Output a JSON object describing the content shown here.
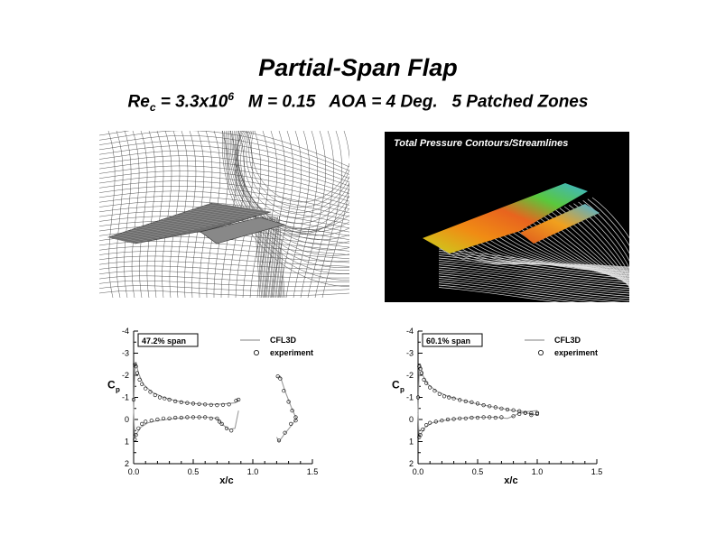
{
  "title": "Partial-Span Flap",
  "subtitle": {
    "re_prefix": "Re",
    "re_sub": "c",
    "re_value": " = 3.3x10",
    "re_exp": "6",
    "rest": "   M = 0.15   AOA = 4 Deg.   5 Patched Zones"
  },
  "cfd_caption": "Total Pressure Contours/Streamlines",
  "colors": {
    "curve": "#9a9a9a",
    "marker": "#000000",
    "cfd_bg": "#000000"
  },
  "chart_data": [
    {
      "type": "line",
      "label_box": "47.2% span",
      "xlabel": "x/c",
      "ylabel": "C",
      "ylabel_sub": "p",
      "xlim": [
        0.0,
        1.5
      ],
      "ylim": [
        2,
        -4
      ],
      "xticks": [
        "0.0",
        "0.5",
        "1.0",
        "1.5"
      ],
      "yticks": [
        "-4",
        "-3",
        "-2",
        "-1",
        "0",
        "1",
        "2"
      ],
      "legend": [
        "CFL3D",
        "experiment"
      ],
      "series": [
        {
          "name": "CFL3D",
          "curves": [
            [
              [
                0.0,
                -0.4
              ],
              [
                0.005,
                -1.4
              ],
              [
                0.01,
                -2.2
              ],
              [
                0.02,
                -2.6
              ],
              [
                0.04,
                -2.1
              ],
              [
                0.08,
                -1.6
              ],
              [
                0.15,
                -1.25
              ],
              [
                0.25,
                -1.0
              ],
              [
                0.35,
                -0.85
              ],
              [
                0.45,
                -0.75
              ],
              [
                0.55,
                -0.7
              ],
              [
                0.65,
                -0.68
              ],
              [
                0.75,
                -0.7
              ],
              [
                0.85,
                -0.75
              ],
              [
                0.88,
                -0.9
              ]
            ],
            [
              [
                0.0,
                -0.4
              ],
              [
                0.005,
                0.3
              ],
              [
                0.01,
                0.8
              ],
              [
                0.03,
                0.6
              ],
              [
                0.06,
                0.35
              ],
              [
                0.12,
                0.15
              ],
              [
                0.2,
                0.05
              ],
              [
                0.35,
                -0.05
              ],
              [
                0.5,
                -0.1
              ],
              [
                0.62,
                -0.1
              ],
              [
                0.7,
                -0.05
              ],
              [
                0.75,
                0.25
              ],
              [
                0.8,
                0.45
              ],
              [
                0.85,
                0.4
              ],
              [
                0.88,
                -0.4
              ]
            ],
            [
              [
                1.2,
                -1.9
              ],
              [
                1.23,
                -1.95
              ],
              [
                1.27,
                -1.3
              ],
              [
                1.32,
                -0.6
              ],
              [
                1.36,
                -0.1
              ],
              [
                1.37,
                -0.05
              ],
              [
                1.32,
                0.3
              ],
              [
                1.26,
                0.7
              ],
              [
                1.22,
                1.0
              ],
              [
                1.2,
                0.8
              ]
            ]
          ]
        },
        {
          "name": "experiment",
          "points": [
            [
              0.0,
              -0.9
            ],
            [
              0.01,
              -2.5
            ],
            [
              0.02,
              -2.4
            ],
            [
              0.03,
              -2.1
            ],
            [
              0.05,
              -1.8
            ],
            [
              0.07,
              -1.6
            ],
            [
              0.1,
              -1.4
            ],
            [
              0.14,
              -1.25
            ],
            [
              0.18,
              -1.1
            ],
            [
              0.22,
              -1.0
            ],
            [
              0.26,
              -0.95
            ],
            [
              0.3,
              -0.9
            ],
            [
              0.35,
              -0.82
            ],
            [
              0.4,
              -0.78
            ],
            [
              0.45,
              -0.75
            ],
            [
              0.5,
              -0.72
            ],
            [
              0.55,
              -0.7
            ],
            [
              0.6,
              -0.68
            ],
            [
              0.65,
              -0.66
            ],
            [
              0.7,
              -0.65
            ],
            [
              0.75,
              -0.66
            ],
            [
              0.8,
              -0.68
            ],
            [
              0.86,
              -0.85
            ],
            [
              0.88,
              -0.9
            ],
            [
              0.01,
              0.9
            ],
            [
              0.02,
              0.7
            ],
            [
              0.04,
              0.4
            ],
            [
              0.07,
              0.2
            ],
            [
              0.1,
              0.1
            ],
            [
              0.15,
              0.05
            ],
            [
              0.2,
              0.0
            ],
            [
              0.25,
              -0.05
            ],
            [
              0.3,
              -0.05
            ],
            [
              0.35,
              -0.08
            ],
            [
              0.4,
              -0.08
            ],
            [
              0.45,
              -0.1
            ],
            [
              0.5,
              -0.1
            ],
            [
              0.55,
              -0.1
            ],
            [
              0.6,
              -0.1
            ],
            [
              0.65,
              -0.05
            ],
            [
              0.7,
              -0.05
            ],
            [
              0.72,
              0.1
            ],
            [
              0.74,
              0.2
            ],
            [
              0.78,
              0.4
            ],
            [
              0.82,
              0.5
            ],
            [
              1.21,
              -1.95
            ],
            [
              1.23,
              -1.85
            ],
            [
              1.26,
              -1.3
            ],
            [
              1.3,
              -0.8
            ],
            [
              1.33,
              -0.4
            ],
            [
              1.36,
              -0.1
            ],
            [
              1.36,
              0.05
            ],
            [
              1.32,
              0.2
            ],
            [
              1.27,
              0.6
            ],
            [
              1.22,
              0.95
            ]
          ]
        }
      ]
    },
    {
      "type": "line",
      "label_box": "60.1% span",
      "xlabel": "x/c",
      "ylabel": "C",
      "ylabel_sub": "p",
      "xlim": [
        0.0,
        1.5
      ],
      "ylim": [
        2,
        -4
      ],
      "xticks": [
        "0.0",
        "0.5",
        "1.0",
        "1.5"
      ],
      "yticks": [
        "-4",
        "-3",
        "-2",
        "-1",
        "0",
        "1",
        "2"
      ],
      "legend": [
        "CFL3D",
        "experiment"
      ],
      "series": [
        {
          "name": "CFL3D",
          "curves": [
            [
              [
                0.0,
                -0.3
              ],
              [
                0.005,
                -1.5
              ],
              [
                0.01,
                -2.2
              ],
              [
                0.02,
                -2.5
              ],
              [
                0.04,
                -2.0
              ],
              [
                0.08,
                -1.6
              ],
              [
                0.15,
                -1.3
              ],
              [
                0.25,
                -1.05
              ],
              [
                0.35,
                -0.9
              ],
              [
                0.5,
                -0.7
              ],
              [
                0.65,
                -0.55
              ],
              [
                0.8,
                -0.4
              ],
              [
                0.9,
                -0.35
              ],
              [
                1.0,
                -0.4
              ]
            ],
            [
              [
                0.0,
                -0.3
              ],
              [
                0.005,
                0.4
              ],
              [
                0.01,
                0.8
              ],
              [
                0.03,
                0.6
              ],
              [
                0.06,
                0.35
              ],
              [
                0.12,
                0.15
              ],
              [
                0.2,
                0.05
              ],
              [
                0.35,
                -0.05
              ],
              [
                0.5,
                -0.1
              ],
              [
                0.65,
                -0.1
              ],
              [
                0.75,
                -0.05
              ],
              [
                0.8,
                -0.15
              ],
              [
                0.85,
                -0.3
              ],
              [
                0.9,
                -0.3
              ],
              [
                1.0,
                -0.2
              ]
            ]
          ]
        },
        {
          "name": "experiment",
          "points": [
            [
              0.0,
              -1.0
            ],
            [
              0.01,
              -2.4
            ],
            [
              0.02,
              -2.3
            ],
            [
              0.03,
              -2.1
            ],
            [
              0.05,
              -1.8
            ],
            [
              0.07,
              -1.65
            ],
            [
              0.1,
              -1.45
            ],
            [
              0.14,
              -1.3
            ],
            [
              0.18,
              -1.15
            ],
            [
              0.22,
              -1.05
            ],
            [
              0.26,
              -1.0
            ],
            [
              0.3,
              -0.95
            ],
            [
              0.35,
              -0.88
            ],
            [
              0.4,
              -0.82
            ],
            [
              0.45,
              -0.78
            ],
            [
              0.5,
              -0.72
            ],
            [
              0.55,
              -0.65
            ],
            [
              0.6,
              -0.6
            ],
            [
              0.65,
              -0.55
            ],
            [
              0.7,
              -0.5
            ],
            [
              0.75,
              -0.45
            ],
            [
              0.8,
              -0.42
            ],
            [
              0.85,
              -0.38
            ],
            [
              0.9,
              -0.3
            ],
            [
              0.95,
              -0.28
            ],
            [
              1.0,
              -0.3
            ],
            [
              0.01,
              0.8
            ],
            [
              0.02,
              0.7
            ],
            [
              0.04,
              0.45
            ],
            [
              0.07,
              0.25
            ],
            [
              0.1,
              0.15
            ],
            [
              0.15,
              0.1
            ],
            [
              0.2,
              0.05
            ],
            [
              0.25,
              0.0
            ],
            [
              0.3,
              -0.02
            ],
            [
              0.35,
              -0.05
            ],
            [
              0.4,
              -0.05
            ],
            [
              0.45,
              -0.08
            ],
            [
              0.5,
              -0.08
            ],
            [
              0.55,
              -0.1
            ],
            [
              0.6,
              -0.1
            ],
            [
              0.65,
              -0.08
            ],
            [
              0.7,
              -0.1
            ],
            [
              0.8,
              -0.15
            ],
            [
              0.85,
              -0.25
            ],
            [
              0.9,
              -0.3
            ],
            [
              0.95,
              -0.2
            ],
            [
              1.0,
              -0.25
            ]
          ]
        }
      ]
    }
  ]
}
